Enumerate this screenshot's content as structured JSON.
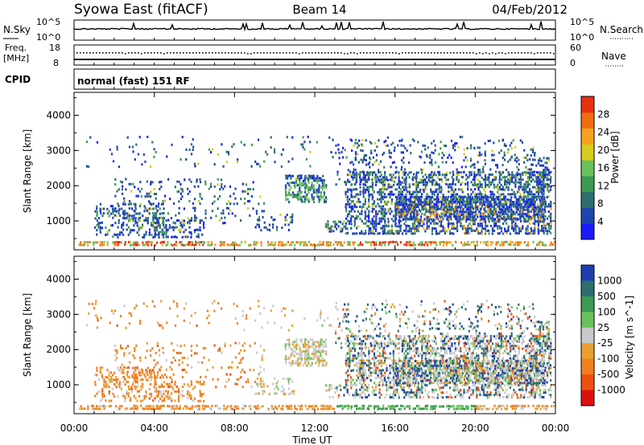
{
  "header": {
    "station": "Syowa East (fitACF)",
    "beam": "Beam 14",
    "date": "04/Feb/2012"
  },
  "panels": {
    "nsky": {
      "left_label": "N.Sky",
      "left_ticks": [
        "10^5",
        "10^0"
      ],
      "right_label": "N.Search",
      "right_ticks": [
        "10^5",
        "10^0"
      ]
    },
    "freq": {
      "left_label_line1": "Freq.",
      "left_label_line2": "[MHz]",
      "left_ticks": [
        "18",
        "8"
      ],
      "right_label": "Nave",
      "right_ticks": [
        "60",
        "0"
      ]
    },
    "cpid": {
      "label": "CPID",
      "value": "normal (fast) 151 RF"
    }
  },
  "colors": {
    "power_scale": [
      "#1a1aff",
      "#1e44b0",
      "#2e6e6e",
      "#3c9a52",
      "#6ac25a",
      "#d6cc1e",
      "#f5a31e",
      "#f06e10",
      "#e83010"
    ],
    "velocity_scale": [
      "#1e3fb0",
      "#2e6e6e",
      "#3c9a52",
      "#6ac25a",
      "#c8c8c8",
      "#e8a030",
      "#f08020",
      "#ee5010",
      "#dd1010"
    ]
  },
  "chart_data": [
    {
      "type": "heatmap",
      "ylabel": "Slant Range [km]",
      "yticks": [
        1000,
        2000,
        3000,
        4000
      ],
      "ylim": [
        180,
        4650
      ],
      "colorbar_label": "Power [dB]",
      "colorbar_ticks": [
        4,
        8,
        12,
        16,
        20,
        24,
        28
      ],
      "colorbar_range": [
        0,
        32
      ]
    },
    {
      "type": "heatmap",
      "ylabel": "Slant Range [km]",
      "yticks": [
        1000,
        2000,
        3000,
        4000
      ],
      "ylim": [
        180,
        4650
      ],
      "xlabel": "Time UT",
      "xticks": [
        "00:00",
        "04:00",
        "08:00",
        "12:00",
        "16:00",
        "20:00",
        "00:00"
      ],
      "colorbar_label": "Velocity [m s^-1]",
      "colorbar_ticks": [
        "1000",
        "500",
        "100",
        "25",
        "-25",
        "-100",
        "-500",
        "-1000"
      ]
    }
  ]
}
